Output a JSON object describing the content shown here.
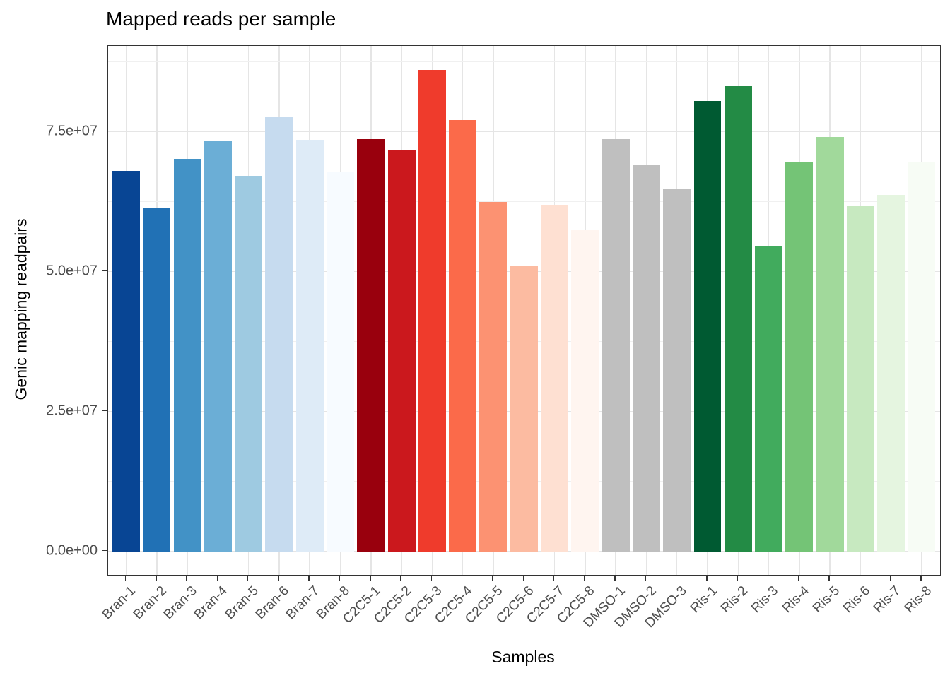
{
  "chart_data": {
    "type": "bar",
    "title": "Mapped reads per sample",
    "xlabel": "Samples",
    "ylabel": "Genic mapping readpairs",
    "categories": [
      "Bran-1",
      "Bran-2",
      "Bran-3",
      "Bran-4",
      "Bran-5",
      "Bran-6",
      "Bran-7",
      "Bran-8",
      "C2C5-1",
      "C2C5-2",
      "C2C5-3",
      "C2C5-4",
      "C2C5-5",
      "C2C5-6",
      "C2C5-7",
      "C2C5-8",
      "DMSO-1",
      "DMSO-2",
      "DMSO-3",
      "Ris-1",
      "Ris-2",
      "Ris-3",
      "Ris-4",
      "Ris-5",
      "Ris-6",
      "Ris-7",
      "Ris-8"
    ],
    "values": [
      68000000,
      61400000,
      70100000,
      73400000,
      67100000,
      77700000,
      73600000,
      67800000,
      73700000,
      71700000,
      86100000,
      77100000,
      62400000,
      50900000,
      62000000,
      57500000,
      73700000,
      69000000,
      64900000,
      80500000,
      83100000,
      54600000,
      69700000,
      74100000,
      61800000,
      63700000,
      69500000
    ],
    "bar_colors": [
      "#084594",
      "#2171B5",
      "#4292C6",
      "#6BAED6",
      "#9ECAE1",
      "#C6DBEF",
      "#DEEBF7",
      "#F7FBFF",
      "#99000D",
      "#CB181D",
      "#EF3B2C",
      "#FB6A4A",
      "#FC9272",
      "#FCBBA1",
      "#FEE0D2",
      "#FFF5F0",
      "#BFBFBF",
      "#BFBFBF",
      "#BFBFBF",
      "#005A32",
      "#238B45",
      "#41AB5D",
      "#74C476",
      "#A1D99B",
      "#C7E9C0",
      "#E5F5E0",
      "#F7FCF5"
    ],
    "y_breaks": [
      {
        "value": 0,
        "label": "0.0e+00"
      },
      {
        "value": 25000000,
        "label": "2.5e+07"
      },
      {
        "value": 50000000,
        "label": "5.0e+07"
      },
      {
        "value": 75000000,
        "label": "7.5e+07"
      }
    ],
    "y_minor_breaks": [
      12500000,
      37500000,
      62500000,
      87500000
    ],
    "ylim": [
      -4200000,
      90400000
    ],
    "grid": "major-and-minor",
    "legend_position": "none",
    "style_colors": {
      "axis_text": "#4D4D4D",
      "axis_title": "#000000",
      "plot_title": "#000000",
      "panel_border": "#333333",
      "grid_major": "#E5E5E5",
      "grid_minor": "#F0F0F0",
      "background": "#FFFFFF"
    }
  }
}
